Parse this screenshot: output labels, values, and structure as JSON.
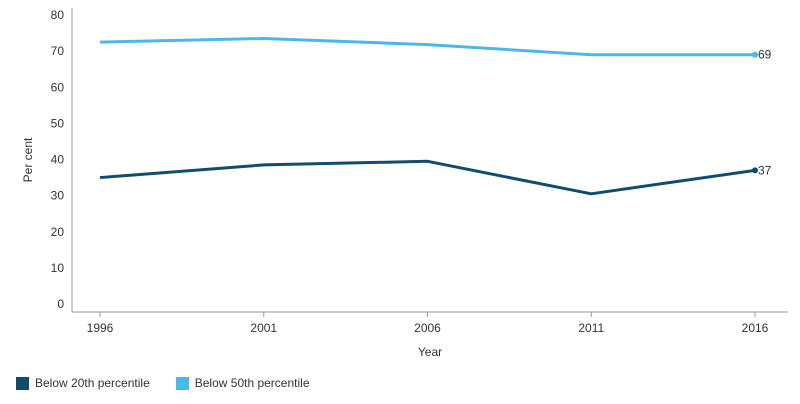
{
  "chart_data": {
    "type": "line",
    "xlabel": "Year",
    "ylabel": "Per cent",
    "ylim": [
      0,
      80
    ],
    "yticks": [
      0,
      10,
      20,
      30,
      40,
      50,
      60,
      70,
      80
    ],
    "categories": [
      "1996",
      "2001",
      "2006",
      "2011",
      "2016"
    ],
    "grid": false,
    "legend_position": "bottom-left",
    "series": [
      {
        "name": "Below 20th percentile",
        "color": "#0e4d6e",
        "values": [
          35,
          38.5,
          39.5,
          30.5,
          37
        ],
        "end_label": "37"
      },
      {
        "name": "Below 50th percentile",
        "color": "#4db8e8",
        "values": [
          72.5,
          73.5,
          71.8,
          69,
          69
        ],
        "end_label": "69"
      }
    ]
  }
}
